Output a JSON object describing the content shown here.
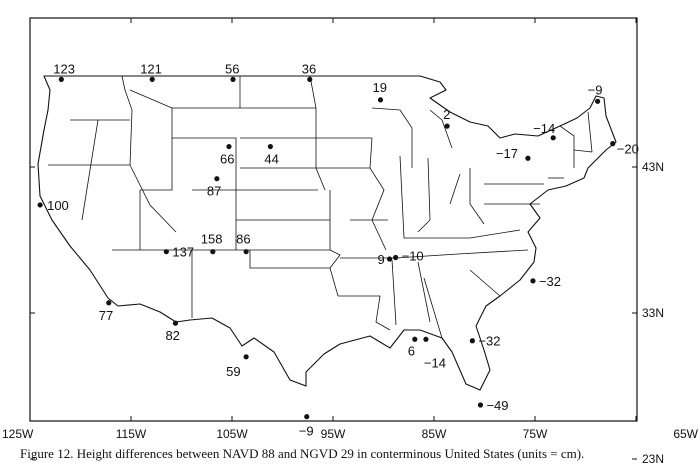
{
  "caption": "Figure 12. Height differences between NAVD 88 and NGVD 29 in conterminous United States (units = cm).",
  "lon_ticks": [
    {
      "lon": -125,
      "label": "125W"
    },
    {
      "lon": -115,
      "label": "115W"
    },
    {
      "lon": -105,
      "label": "105W"
    },
    {
      "lon": -95,
      "label": "95W"
    },
    {
      "lon": -85,
      "label": "85W"
    },
    {
      "lon": -75,
      "label": "75W"
    },
    {
      "lon": -65,
      "label": "65W"
    }
  ],
  "lat_ticks": [
    {
      "lat": 43,
      "label": "43N"
    },
    {
      "lat": 33,
      "label": "33N"
    },
    {
      "lat": 23,
      "label": "23N"
    }
  ],
  "points": [
    {
      "lon": -121.9,
      "lat": 49.0,
      "value": "123"
    },
    {
      "lon": -112.9,
      "lat": 49.0,
      "value": "121"
    },
    {
      "lon": -104.9,
      "lat": 49.0,
      "value": "56"
    },
    {
      "lon": -97.3,
      "lat": 49.0,
      "value": "36"
    },
    {
      "lon": -90.3,
      "lat": 47.6,
      "value": "19"
    },
    {
      "lon": -83.7,
      "lat": 45.8,
      "value": "2"
    },
    {
      "lon": -68.8,
      "lat": 47.5,
      "value": "-9"
    },
    {
      "lon": -73.2,
      "lat": 45.0,
      "value": "-14"
    },
    {
      "lon": -75.7,
      "lat": 43.6,
      "value": "-17"
    },
    {
      "lon": -67.3,
      "lat": 44.6,
      "value": "-20"
    },
    {
      "lon": -105.3,
      "lat": 44.4,
      "value": "66"
    },
    {
      "lon": -101.2,
      "lat": 44.4,
      "value": "44"
    },
    {
      "lon": -106.5,
      "lat": 42.2,
      "value": "87"
    },
    {
      "lon": -124.0,
      "lat": 40.4,
      "value": "100"
    },
    {
      "lon": -111.5,
      "lat": 37.2,
      "value": "137"
    },
    {
      "lon": -106.9,
      "lat": 37.2,
      "value": "158"
    },
    {
      "lon": -103.6,
      "lat": 37.2,
      "value": "86"
    },
    {
      "lon": -89.4,
      "lat": 36.7,
      "value": "9"
    },
    {
      "lon": -88.8,
      "lat": 36.8,
      "value": "-10"
    },
    {
      "lon": -75.2,
      "lat": 35.2,
      "value": "-32"
    },
    {
      "lon": -117.2,
      "lat": 33.7,
      "value": "77"
    },
    {
      "lon": -110.6,
      "lat": 32.3,
      "value": "82"
    },
    {
      "lon": -86.9,
      "lat": 31.2,
      "value": "6"
    },
    {
      "lon": -85.8,
      "lat": 31.2,
      "value": "-14"
    },
    {
      "lon": -81.2,
      "lat": 31.1,
      "value": "-32"
    },
    {
      "lon": -103.6,
      "lat": 30.0,
      "value": "59"
    },
    {
      "lon": -80.4,
      "lat": 26.7,
      "value": "-49"
    },
    {
      "lon": -97.6,
      "lat": 25.9,
      "value": "-9"
    }
  ]
}
